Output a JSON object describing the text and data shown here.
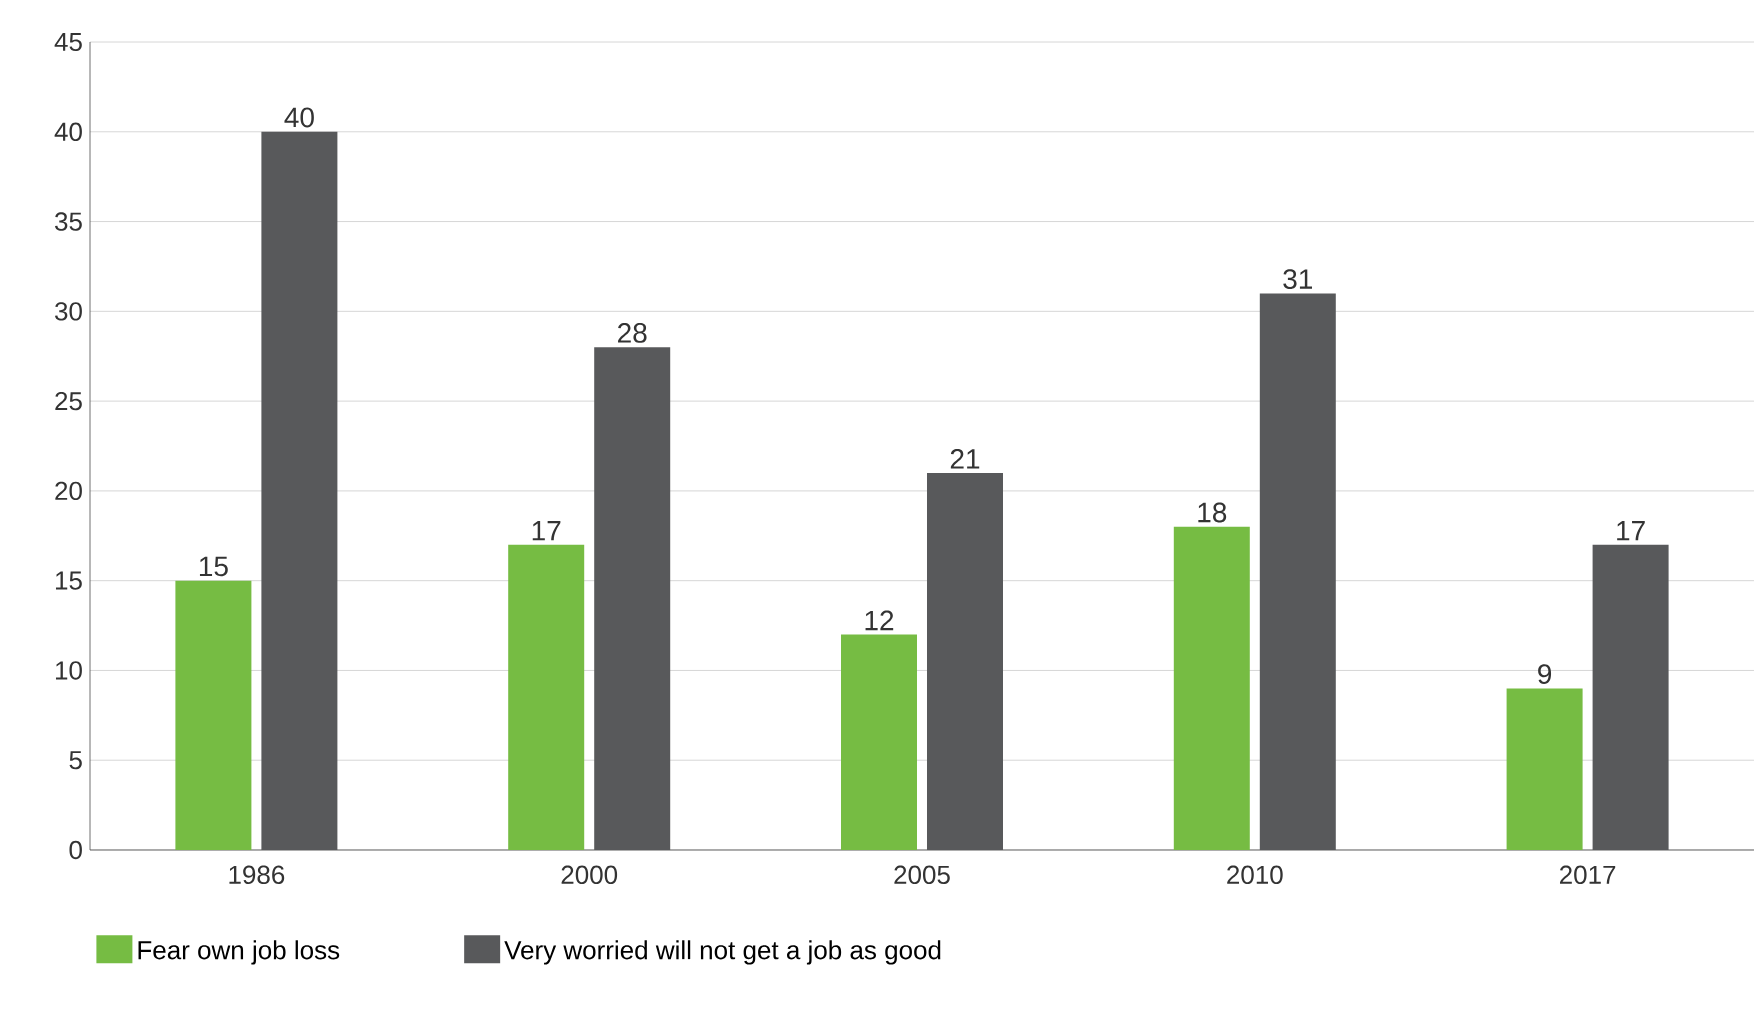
{
  "chart_data": {
    "type": "bar",
    "categories": [
      "1986",
      "2000",
      "2005",
      "2010",
      "2017"
    ],
    "series": [
      {
        "name": "Fear own job loss",
        "color": "#76bc43",
        "values": [
          15,
          17,
          12,
          18,
          9
        ]
      },
      {
        "name": "Very worried will not get a job as good",
        "color": "#58595b",
        "values": [
          40,
          28,
          21,
          31,
          17
        ]
      }
    ],
    "ylim": [
      0,
      45
    ],
    "yticks": [
      0,
      5,
      10,
      15,
      20,
      25,
      30,
      35,
      40,
      45
    ],
    "grid": "y",
    "legend": "bottom",
    "data_labels": true
  }
}
